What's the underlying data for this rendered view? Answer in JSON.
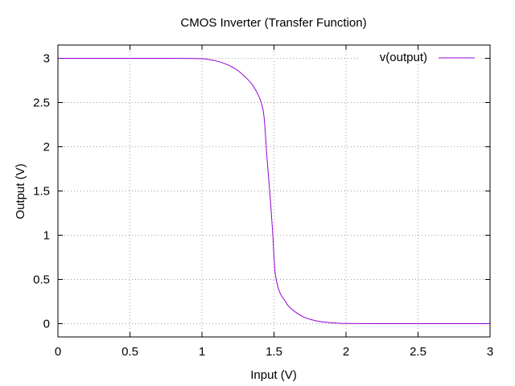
{
  "chart_data": {
    "type": "line",
    "title": "CMOS Inverter (Transfer Function)",
    "xlabel": "Input (V)",
    "ylabel": "Output (V)",
    "xlim": [
      0,
      3
    ],
    "ylim": [
      -0.15,
      3.15
    ],
    "x_ticks": [
      0,
      0.5,
      1,
      1.5,
      2,
      2.5,
      3
    ],
    "x_tick_labels": [
      "0",
      "0.5",
      "1",
      "1.5",
      "2",
      "2.5",
      "3"
    ],
    "y_ticks": [
      0,
      0.5,
      1,
      1.5,
      2,
      2.5,
      3
    ],
    "y_tick_labels": [
      "0",
      "0.5",
      "1",
      "1.5",
      "2",
      "2.5",
      "3"
    ],
    "grid": true,
    "legend_position": "top-right",
    "series": [
      {
        "name": "v(output)",
        "color": "#9400d3",
        "x": [
          0,
          0.2,
          0.4,
          0.6,
          0.8,
          1.0,
          1.05,
          1.1,
          1.15,
          1.2,
          1.25,
          1.3,
          1.35,
          1.4,
          1.43,
          1.45,
          1.47,
          1.49,
          1.5,
          1.51,
          1.53,
          1.55,
          1.58,
          1.6,
          1.65,
          1.7,
          1.75,
          1.8,
          1.85,
          1.9,
          1.95,
          2.0,
          2.2,
          2.5,
          3.0
        ],
        "y": [
          3.0,
          3.0,
          3.0,
          3.0,
          3.0,
          2.995,
          2.985,
          2.97,
          2.945,
          2.91,
          2.86,
          2.79,
          2.7,
          2.55,
          2.35,
          1.9,
          1.5,
          1.05,
          0.75,
          0.55,
          0.4,
          0.32,
          0.25,
          0.2,
          0.13,
          0.08,
          0.05,
          0.03,
          0.018,
          0.01,
          0.005,
          0.002,
          0.0,
          0.0,
          0.0
        ]
      }
    ]
  }
}
